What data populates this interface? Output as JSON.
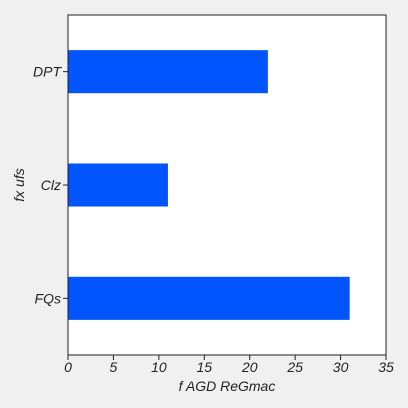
{
  "chart_data": {
    "type": "bar",
    "orientation": "horizontal",
    "categories": [
      "DPT",
      "Clz",
      "FQs"
    ],
    "values": [
      22,
      11,
      31
    ],
    "xlabel": "f AGD ReGmac",
    "ylabel": "fx ufs",
    "xlim": [
      0,
      35
    ],
    "xticks": [
      0,
      5,
      10,
      15,
      20,
      25,
      30,
      35
    ],
    "grid": false,
    "legend": "none",
    "bar_color": "#0055ff",
    "plot_background": "#ffffff",
    "page_background": "#f0f0f0"
  }
}
